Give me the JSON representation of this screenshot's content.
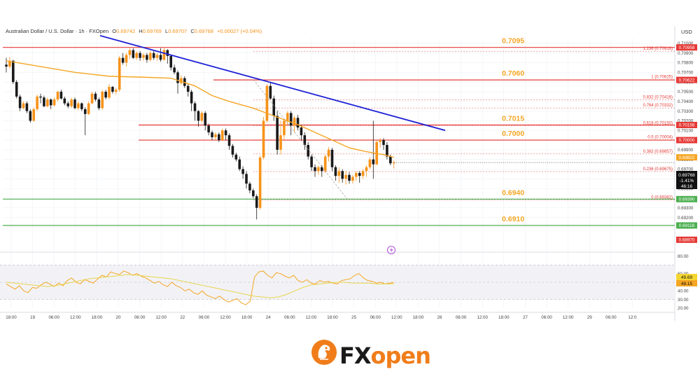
{
  "header": {
    "symbol_line": "Australian Dollar / U.S. Dollar · 1h · FXOpen",
    "o_label": "O",
    "o_value": "0.69742",
    "h_label": "H",
    "h_value": "0.69769",
    "l_label": "L",
    "l_value": "0.69707",
    "c_label": "C",
    "c_value": "0.69768",
    "change": "+0.00027 (+0.04%)",
    "currency": "USD"
  },
  "colors": {
    "up": "#f7931a",
    "down": "#1a1a1a",
    "ma": "#f5a623",
    "trendline": "#1e22d6",
    "resistance": "#e53935",
    "support": "#4caf50",
    "fib": "#e53935",
    "rsi": "#f5a623",
    "rsi_signal": "#e8d44d",
    "brand_orange": "#f07d1a"
  },
  "level_labels": [
    {
      "text": "0.7095",
      "price": 0.7095
    },
    {
      "text": "0.7060",
      "price": 0.706
    },
    {
      "text": "0.7015",
      "price": 0.7015
    },
    {
      "text": "0.7000",
      "price": 0.7
    },
    {
      "text": "0.6940",
      "price": 0.694
    },
    {
      "text": "0.6910",
      "price": 0.691
    }
  ],
  "fib_levels": [
    {
      "text": "1.236 (0.70918)",
      "price": 0.70918
    },
    {
      "text": "1 (0.70625)",
      "price": 0.70625
    },
    {
      "text": "0.832 (0.70416)",
      "price": 0.70416
    },
    {
      "text": "0.764 (0.70332)",
      "price": 0.70332
    },
    {
      "text": "0.618 (0.70150)",
      "price": 0.7015
    },
    {
      "text": "0.5 (0.70004)",
      "price": 0.70004
    },
    {
      "text": "0.382 (0.69857)",
      "price": 0.69857
    },
    {
      "text": "0.236 (0.69675)",
      "price": 0.69675
    },
    {
      "text": "0 (0.69382)",
      "price": 0.69382
    }
  ],
  "price_badges": [
    {
      "text": "0.70958",
      "price": 0.70958,
      "color": "#e53935"
    },
    {
      "text": "0.70622",
      "price": 0.70622,
      "color": "#e53935"
    },
    {
      "text": "0.70156",
      "price": 0.70156,
      "color": "#e53935"
    },
    {
      "text": "0.70000",
      "price": 0.7,
      "color": "#e53935"
    },
    {
      "text": "0.69822",
      "price": 0.69822,
      "color": "#f5a623"
    },
    {
      "text": "0.69390",
      "price": 0.6939,
      "color": "#4caf50"
    },
    {
      "text": "0.69118",
      "price": 0.69118,
      "color": "#4caf50"
    },
    {
      "text": "0.68970",
      "price": 0.6897,
      "color": "#e53935"
    }
  ],
  "current_price_badge": {
    "price_text": "0.69768",
    "change_text": "-1.41%",
    "countdown": "46:16"
  },
  "y_axis_ticks": [
    "0.71000",
    "0.70900",
    "0.70800",
    "0.70700",
    "0.70600",
    "0.70500",
    "0.70400",
    "0.70300",
    "0.70200",
    "0.70100",
    "0.70000",
    "0.69900",
    "0.69800",
    "0.69700",
    "0.69600",
    "0.69500",
    "0.69400",
    "0.69300",
    "0.69200",
    "0.69100"
  ],
  "rsi_axis_ticks": [
    "80.00",
    "60.00",
    "40.00",
    "30.00",
    "20.00"
  ],
  "rsi_badges": {
    "rsi": "49.69",
    "signal": "48.15"
  },
  "x_axis_ticks": [
    "18:00",
    "19",
    "06:00",
    "12:00",
    "18:00",
    "20",
    "06:00",
    "12:00",
    "22",
    "06:00",
    "12:00",
    "18:00",
    "24",
    "06:00",
    "12:00",
    "18:00",
    "25",
    "06:00",
    "12:00",
    "18:00",
    "26",
    "06:00",
    "12:00",
    "18:00",
    "27",
    "06:00",
    "12:00",
    "29",
    "06:00",
    "12:0"
  ],
  "brand": {
    "fx": "FX",
    "open": "open"
  },
  "chart_data": {
    "type": "candlestick",
    "title": "Australian Dollar / U.S. Dollar · 1h · FXOpen",
    "ylabel": "USD",
    "ylim": [
      0.689,
      0.7105
    ],
    "grid": true,
    "candles": [
      [
        0.7078,
        0.7076,
        0.707,
        0.7085
      ],
      [
        0.7076,
        0.7082,
        0.7074,
        0.7086
      ],
      [
        0.7082,
        0.706,
        0.7058,
        0.7083
      ],
      [
        0.706,
        0.7045,
        0.7043,
        0.7062
      ],
      [
        0.7045,
        0.7033,
        0.703,
        0.7047
      ],
      [
        0.7033,
        0.7038,
        0.7032,
        0.704
      ],
      [
        0.7038,
        0.703,
        0.7028,
        0.704
      ],
      [
        0.703,
        0.702,
        0.7018,
        0.7032
      ],
      [
        0.702,
        0.7032,
        0.7019,
        0.7034
      ],
      [
        0.7032,
        0.7045,
        0.703,
        0.7047
      ],
      [
        0.7045,
        0.7044,
        0.7038,
        0.7048
      ],
      [
        0.7044,
        0.7035,
        0.7034,
        0.7046
      ],
      [
        0.7035,
        0.7042,
        0.7034,
        0.7044
      ],
      [
        0.7042,
        0.7036,
        0.7032,
        0.7043
      ],
      [
        0.7036,
        0.7042,
        0.7035,
        0.7044
      ],
      [
        0.7042,
        0.705,
        0.704,
        0.7051
      ],
      [
        0.705,
        0.7043,
        0.7042,
        0.7052
      ],
      [
        0.7043,
        0.7038,
        0.7036,
        0.7045
      ],
      [
        0.7038,
        0.7035,
        0.7033,
        0.704
      ],
      [
        0.7035,
        0.7042,
        0.7033,
        0.7044
      ],
      [
        0.7042,
        0.7033,
        0.7032,
        0.7044
      ],
      [
        0.7033,
        0.7038,
        0.7031,
        0.704
      ],
      [
        0.7038,
        0.7032,
        0.703,
        0.7039
      ],
      [
        0.7032,
        0.7027,
        0.7005,
        0.7034
      ],
      [
        0.7027,
        0.7038,
        0.7026,
        0.704
      ],
      [
        0.7038,
        0.7048,
        0.7037,
        0.705
      ],
      [
        0.7048,
        0.7042,
        0.704,
        0.705
      ],
      [
        0.7042,
        0.7033,
        0.7031,
        0.7044
      ],
      [
        0.7033,
        0.705,
        0.7031,
        0.7052
      ],
      [
        0.705,
        0.7044,
        0.7042,
        0.7052
      ],
      [
        0.7044,
        0.7055,
        0.7042,
        0.7058
      ],
      [
        0.7055,
        0.705,
        0.7048,
        0.7056
      ],
      [
        0.705,
        0.7052,
        0.7047,
        0.7054
      ],
      [
        0.7052,
        0.7085,
        0.705,
        0.7087
      ],
      [
        0.7085,
        0.708,
        0.7078,
        0.709
      ],
      [
        0.708,
        0.7088,
        0.7076,
        0.709
      ],
      [
        0.7088,
        0.7093,
        0.7084,
        0.7095
      ],
      [
        0.7093,
        0.7085,
        0.7084,
        0.7095
      ],
      [
        0.7085,
        0.709,
        0.7083,
        0.7092
      ],
      [
        0.709,
        0.7085,
        0.7082,
        0.7092
      ],
      [
        0.7085,
        0.7088,
        0.7082,
        0.709
      ],
      [
        0.7088,
        0.7083,
        0.708,
        0.709
      ],
      [
        0.7083,
        0.709,
        0.7081,
        0.7092
      ],
      [
        0.709,
        0.7085,
        0.7083,
        0.7092
      ],
      [
        0.7085,
        0.7088,
        0.7082,
        0.709
      ],
      [
        0.7088,
        0.7083,
        0.7081,
        0.7095
      ],
      [
        0.7083,
        0.7093,
        0.7082,
        0.7095
      ],
      [
        0.7093,
        0.7087,
        0.7079,
        0.7094
      ],
      [
        0.7087,
        0.7075,
        0.7072,
        0.7088
      ],
      [
        0.7075,
        0.707,
        0.7068,
        0.7078
      ],
      [
        0.707,
        0.7059,
        0.7048,
        0.7072
      ],
      [
        0.7059,
        0.7064,
        0.7057,
        0.7067
      ],
      [
        0.7064,
        0.7056,
        0.7054,
        0.7066
      ],
      [
        0.7056,
        0.705,
        0.7045,
        0.7058
      ],
      [
        0.705,
        0.7038,
        0.703,
        0.7052
      ],
      [
        0.7038,
        0.703,
        0.702,
        0.704
      ],
      [
        0.703,
        0.702,
        0.7014,
        0.7031
      ],
      [
        0.702,
        0.7028,
        0.7018,
        0.703
      ],
      [
        0.7028,
        0.7015,
        0.701,
        0.703
      ],
      [
        0.7015,
        0.7008,
        0.7005,
        0.7017
      ],
      [
        0.7008,
        0.7003,
        0.7,
        0.701
      ],
      [
        0.7003,
        0.7006,
        0.7,
        0.7008
      ],
      [
        0.7006,
        0.7,
        0.6998,
        0.7008
      ],
      [
        0.7,
        0.701,
        0.6999,
        0.7012
      ],
      [
        0.701,
        0.7005,
        0.7,
        0.7012
      ],
      [
        0.7005,
        0.6994,
        0.699,
        0.7007
      ],
      [
        0.6994,
        0.6985,
        0.6982,
        0.6996
      ],
      [
        0.6985,
        0.698,
        0.6978,
        0.6987
      ],
      [
        0.698,
        0.697,
        0.6968,
        0.6983
      ],
      [
        0.697,
        0.6965,
        0.696,
        0.6973
      ],
      [
        0.6965,
        0.6955,
        0.695,
        0.6968
      ],
      [
        0.6955,
        0.6948,
        0.6945,
        0.6957
      ],
      [
        0.6948,
        0.6942,
        0.694,
        0.695
      ],
      [
        0.6942,
        0.693,
        0.6918,
        0.6944
      ],
      [
        0.693,
        0.6982,
        0.6928,
        0.6984
      ],
      [
        0.6982,
        0.702,
        0.698,
        0.7024
      ],
      [
        0.702,
        0.7056,
        0.7018,
        0.7058
      ],
      [
        0.7056,
        0.7043,
        0.7042,
        0.706
      ],
      [
        0.7043,
        0.7025,
        0.702,
        0.7046
      ],
      [
        0.7025,
        0.699,
        0.6985,
        0.703
      ],
      [
        0.699,
        0.7005,
        0.6985,
        0.702
      ],
      [
        0.7005,
        0.702,
        0.7,
        0.7022
      ],
      [
        0.702,
        0.7028,
        0.7015,
        0.703
      ],
      [
        0.7028,
        0.7015,
        0.7005,
        0.703
      ],
      [
        0.7015,
        0.7023,
        0.7008,
        0.7025
      ],
      [
        0.7023,
        0.7013,
        0.701,
        0.7026
      ],
      [
        0.7013,
        0.7005,
        0.7,
        0.7016
      ],
      [
        0.7005,
        0.6995,
        0.699,
        0.7008
      ],
      [
        0.6995,
        0.6983,
        0.698,
        0.6998
      ],
      [
        0.6983,
        0.6972,
        0.6968,
        0.6985
      ],
      [
        0.6972,
        0.6968,
        0.6962,
        0.6975
      ],
      [
        0.6968,
        0.6972,
        0.6964,
        0.6974
      ],
      [
        0.6972,
        0.6968,
        0.6962,
        0.6974
      ],
      [
        0.6968,
        0.6983,
        0.6966,
        0.6985
      ],
      [
        0.6983,
        0.699,
        0.6978,
        0.6993
      ],
      [
        0.699,
        0.6972,
        0.6968,
        0.6992
      ],
      [
        0.6972,
        0.6963,
        0.6958,
        0.6974
      ],
      [
        0.6963,
        0.6968,
        0.6956,
        0.6972
      ],
      [
        0.6968,
        0.696,
        0.6956,
        0.697
      ],
      [
        0.696,
        0.6964,
        0.6954,
        0.6968
      ],
      [
        0.6964,
        0.6958,
        0.6955,
        0.6967
      ],
      [
        0.6958,
        0.6962,
        0.6955,
        0.6964
      ],
      [
        0.6962,
        0.6966,
        0.6958,
        0.6968
      ],
      [
        0.6966,
        0.6963,
        0.6956,
        0.6968
      ],
      [
        0.6963,
        0.6968,
        0.696,
        0.697
      ],
      [
        0.6968,
        0.6972,
        0.6962,
        0.6974
      ],
      [
        0.6972,
        0.698,
        0.697,
        0.6982
      ],
      [
        0.698,
        0.6975,
        0.696,
        0.702
      ],
      [
        0.6975,
        0.6998,
        0.6974,
        0.7
      ],
      [
        0.6998,
        0.7,
        0.6992,
        0.7002
      ],
      [
        0.7,
        0.6995,
        0.699,
        0.7002
      ],
      [
        0.6995,
        0.6983,
        0.698,
        0.6998
      ],
      [
        0.6983,
        0.6976,
        0.6974,
        0.6985
      ],
      [
        0.6976,
        0.69768,
        0.69707,
        0.6979
      ]
    ],
    "moving_average": [
      [
        0,
        0.7082
      ],
      [
        10,
        0.7076
      ],
      [
        20,
        0.707
      ],
      [
        30,
        0.7066
      ],
      [
        40,
        0.7065
      ],
      [
        48,
        0.7064
      ],
      [
        55,
        0.7056
      ],
      [
        60,
        0.7046
      ],
      [
        65,
        0.704
      ],
      [
        72,
        0.7033
      ],
      [
        78,
        0.7025
      ],
      [
        85,
        0.7016
      ],
      [
        90,
        0.7008
      ],
      [
        95,
        0.7
      ],
      [
        100,
        0.6992
      ],
      [
        105,
        0.6988
      ],
      [
        110,
        0.6985
      ],
      [
        113,
        0.69822
      ]
    ],
    "rsi": {
      "ylim": [
        20,
        80
      ],
      "values": [
        48,
        45,
        42,
        46,
        40,
        38,
        44,
        43,
        47,
        50,
        48,
        45,
        49,
        46,
        52,
        55,
        50,
        48,
        53,
        51,
        49,
        54,
        58,
        56,
        62,
        60,
        59,
        63,
        61,
        58,
        60,
        57,
        55,
        52,
        49,
        51,
        47,
        45,
        50,
        46,
        44,
        40,
        42,
        38,
        36,
        40,
        35,
        33,
        31,
        34,
        30,
        27,
        29,
        31,
        26,
        24,
        28,
        56,
        62,
        63,
        58,
        55,
        61,
        60,
        57,
        55,
        58,
        52,
        50,
        53,
        49,
        48,
        52,
        50,
        51,
        49,
        48,
        52,
        53,
        54,
        58,
        60,
        55,
        52,
        51,
        49,
        50,
        48,
        49,
        49.69
      ],
      "signal": [
        50,
        49,
        48,
        47,
        46,
        45,
        46,
        48,
        50,
        52,
        54,
        55,
        56,
        57,
        58,
        59,
        58,
        57,
        56,
        55,
        54,
        52,
        50,
        48,
        46,
        44,
        42,
        40,
        38,
        36,
        34,
        33,
        32,
        33,
        36,
        40,
        44,
        47,
        48,
        49,
        50,
        50,
        49,
        49,
        49,
        48,
        48,
        48.15
      ],
      "current": 49.69,
      "signal_current": 48.15
    },
    "fibonacci": {
      "low": 0.69382,
      "high": 0.70625
    },
    "trendline": {
      "from_price": 0.7108,
      "to_price": 0.701
    }
  }
}
